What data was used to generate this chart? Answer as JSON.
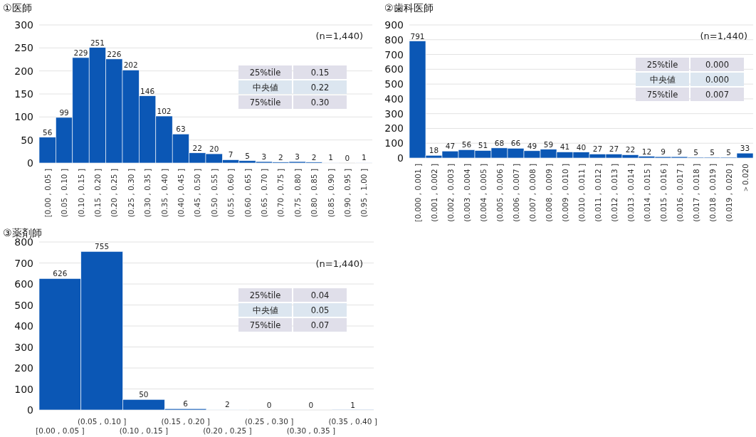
{
  "chart_data": [
    {
      "type": "bar",
      "title": "①医師",
      "categories": [
        "[0.00 , 0.05 ]",
        "(0.05 , 0.10 ]",
        "(0.10 , 0.15 ]",
        "(0.15 , 0.20 ]",
        "(0.20 , 0.25 ]",
        "(0.25 , 0.30 ]",
        "(0.30 , 0.35 ]",
        "(0.35 , 0.40 ]",
        "(0.40 , 0.45 ]",
        "(0.45 , 0.50 ]",
        "(0.50 , 0.55 ]",
        "(0.55 , 0.60 ]",
        "(0.60 , 0.65 ]",
        "(0.65 , 0.70 ]",
        "(0.70 , 0.75 ]",
        "(0.75 , 0.80 ]",
        "(0.80 , 0.85 ]",
        "(0.85 , 0.90 ]",
        "(0.90 , 0.95 ]",
        "(0.95 , 1.00 ]"
      ],
      "values": [
        56,
        99,
        229,
        251,
        226,
        202,
        146,
        102,
        63,
        22,
        20,
        7,
        5,
        3,
        2,
        3,
        2,
        1,
        0,
        1
      ],
      "color": "#0b57b5",
      "ylim": [
        0,
        300
      ],
      "yticks": [
        0,
        50,
        100,
        150,
        200,
        250,
        300
      ],
      "grid": "y",
      "data_labels": true,
      "annotations": [
        "(n=1,440)",
        "25%tile",
        "0.15",
        "中央値",
        "0.22",
        "75%tile",
        "0.30"
      ]
    },
    {
      "type": "bar",
      "title": "②歯科医師",
      "categories": [
        "[0.000 , 0.001 ]",
        "(0.001 , 0.002 ]",
        "(0.002 , 0.003 ]",
        "(0.003 , 0.004 ]",
        "(0.004 , 0.005 ]",
        "(0.005 , 0.006 ]",
        "(0.006 , 0.007 ]",
        "(0.007 , 0.008 ]",
        "(0.008 , 0.009 ]",
        "(0.009 , 0.010 ]",
        "(0.010 , 0.011 ]",
        "(0.011 , 0.012 ]",
        "(0.012 , 0.013 ]",
        "(0.013 , 0.014 ]",
        "(0.014 , 0.015 ]",
        "(0.015 , 0.016 ]",
        "(0.016 , 0.017 ]",
        "(0.017 , 0.018 ]",
        "(0.018 , 0.019 ]",
        "(0.019 , 0.020 ]",
        "＞0.020"
      ],
      "values": [
        791,
        18,
        47,
        56,
        51,
        68,
        66,
        49,
        59,
        41,
        40,
        27,
        27,
        22,
        12,
        9,
        9,
        5,
        5,
        5,
        33
      ],
      "color": "#0b57b5",
      "ylim": [
        0,
        900
      ],
      "yticks": [
        0,
        100,
        200,
        300,
        400,
        500,
        600,
        700,
        800,
        900
      ],
      "grid": "y",
      "data_labels": true,
      "annotations": [
        "(n=1,440)",
        "25%tile",
        "0.000",
        "中央値",
        "0.000",
        "75%tile",
        "0.007"
      ]
    },
    {
      "type": "bar",
      "title": "③薬剤師",
      "categories": [
        "[0.00 , 0.05 ]",
        "(0.05 , 0.10 ]",
        "(0.10 , 0.15 ]",
        "(0.15 , 0.20 ]",
        "(0.20 , 0.25 ]",
        "(0.25 , 0.30 ]",
        "(0.30 , 0.35 ]",
        "(0.35 , 0.40 ]"
      ],
      "values": [
        626,
        755,
        50,
        6,
        2,
        0,
        0,
        1
      ],
      "color": "#0b57b5",
      "ylim": [
        0,
        800
      ],
      "yticks": [
        0,
        100,
        200,
        300,
        400,
        500,
        600,
        700,
        800
      ],
      "grid": "y",
      "data_labels": true,
      "annotations": [
        "(n=1,440)",
        "25%tile",
        "0.04",
        "中央値",
        "0.05",
        "75%tile",
        "0.07"
      ]
    }
  ]
}
